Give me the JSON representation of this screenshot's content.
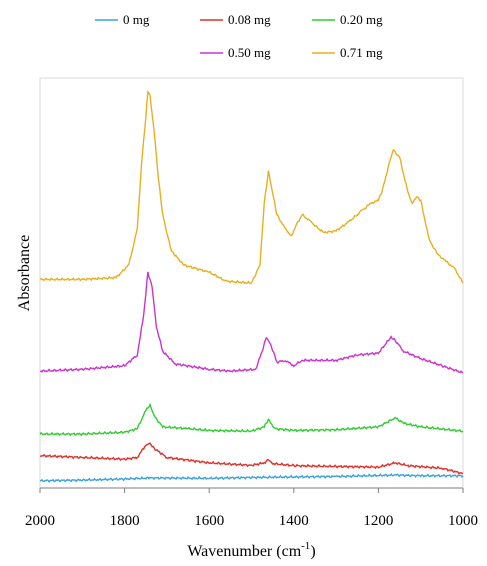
{
  "chart_data": {
    "type": "line",
    "title": "",
    "xlabel": "Wavenumber",
    "xlabel_unit": "cm",
    "xlabel_unit_exp": "-1",
    "xlabel_close": ")",
    "xlabel_open": " (",
    "ylabel": "Absorbance",
    "xlim": [
      2000,
      1000
    ],
    "x_reversed": true,
    "x_ticks": [
      2000,
      1800,
      1600,
      1400,
      1200,
      1000
    ],
    "y_ticks_shown": false,
    "grid": false,
    "legend_position": "top",
    "series": [
      {
        "name": "0 mg",
        "color": "#3BA3D9",
        "points": [
          [
            2000,
            0.02
          ],
          [
            1900,
            0.022
          ],
          [
            1800,
            0.025
          ],
          [
            1740,
            0.028
          ],
          [
            1600,
            0.027
          ],
          [
            1460,
            0.03
          ],
          [
            1300,
            0.032
          ],
          [
            1160,
            0.036
          ],
          [
            1100,
            0.034
          ],
          [
            1000,
            0.034
          ]
        ]
      },
      {
        "name": "0.08 mg",
        "color": "#E0312B",
        "points": [
          [
            2000,
            0.09
          ],
          [
            1900,
            0.085
          ],
          [
            1800,
            0.08
          ],
          [
            1770,
            0.085
          ],
          [
            1750,
            0.12
          ],
          [
            1740,
            0.125
          ],
          [
            1730,
            0.11
          ],
          [
            1700,
            0.085
          ],
          [
            1600,
            0.07
          ],
          [
            1500,
            0.063
          ],
          [
            1470,
            0.07
          ],
          [
            1460,
            0.08
          ],
          [
            1450,
            0.068
          ],
          [
            1400,
            0.062
          ],
          [
            1300,
            0.06
          ],
          [
            1200,
            0.058
          ],
          [
            1160,
            0.07
          ],
          [
            1130,
            0.062
          ],
          [
            1050,
            0.055
          ],
          [
            1000,
            0.04
          ]
        ]
      },
      {
        "name": "0.20 mg",
        "color": "#33CC33",
        "points": [
          [
            2000,
            0.15
          ],
          [
            1900,
            0.15
          ],
          [
            1800,
            0.155
          ],
          [
            1770,
            0.165
          ],
          [
            1750,
            0.215
          ],
          [
            1740,
            0.23
          ],
          [
            1730,
            0.2
          ],
          [
            1710,
            0.17
          ],
          [
            1650,
            0.165
          ],
          [
            1600,
            0.16
          ],
          [
            1500,
            0.158
          ],
          [
            1470,
            0.17
          ],
          [
            1460,
            0.19
          ],
          [
            1445,
            0.165
          ],
          [
            1400,
            0.16
          ],
          [
            1300,
            0.162
          ],
          [
            1200,
            0.17
          ],
          [
            1160,
            0.195
          ],
          [
            1140,
            0.18
          ],
          [
            1100,
            0.17
          ],
          [
            1000,
            0.158
          ]
        ]
      },
      {
        "name": "0.50 mg",
        "color": "#CC33CC",
        "points": [
          [
            2000,
            0.325
          ],
          [
            1900,
            0.33
          ],
          [
            1800,
            0.34
          ],
          [
            1770,
            0.37
          ],
          [
            1755,
            0.48
          ],
          [
            1745,
            0.6
          ],
          [
            1735,
            0.56
          ],
          [
            1725,
            0.45
          ],
          [
            1710,
            0.38
          ],
          [
            1680,
            0.345
          ],
          [
            1600,
            0.33
          ],
          [
            1550,
            0.325
          ],
          [
            1490,
            0.33
          ],
          [
            1475,
            0.38
          ],
          [
            1465,
            0.42
          ],
          [
            1455,
            0.4
          ],
          [
            1440,
            0.35
          ],
          [
            1420,
            0.355
          ],
          [
            1400,
            0.34
          ],
          [
            1380,
            0.355
          ],
          [
            1300,
            0.355
          ],
          [
            1250,
            0.37
          ],
          [
            1200,
            0.375
          ],
          [
            1170,
            0.42
          ],
          [
            1160,
            0.41
          ],
          [
            1140,
            0.38
          ],
          [
            1100,
            0.36
          ],
          [
            1050,
            0.34
          ],
          [
            1000,
            0.32
          ]
        ]
      },
      {
        "name": "0.71 mg",
        "color": "#E8B020",
        "points": [
          [
            2000,
            0.58
          ],
          [
            1900,
            0.58
          ],
          [
            1820,
            0.585
          ],
          [
            1790,
            0.62
          ],
          [
            1770,
            0.72
          ],
          [
            1760,
            0.9
          ],
          [
            1750,
            1.03
          ],
          [
            1745,
            1.1
          ],
          [
            1740,
            1.09
          ],
          [
            1730,
            0.99
          ],
          [
            1720,
            0.86
          ],
          [
            1710,
            0.76
          ],
          [
            1690,
            0.66
          ],
          [
            1660,
            0.62
          ],
          [
            1600,
            0.6
          ],
          [
            1560,
            0.575
          ],
          [
            1500,
            0.57
          ],
          [
            1480,
            0.62
          ],
          [
            1470,
            0.79
          ],
          [
            1460,
            0.88
          ],
          [
            1450,
            0.82
          ],
          [
            1440,
            0.76
          ],
          [
            1420,
            0.72
          ],
          [
            1405,
            0.7
          ],
          [
            1395,
            0.73
          ],
          [
            1380,
            0.76
          ],
          [
            1360,
            0.74
          ],
          [
            1330,
            0.71
          ],
          [
            1300,
            0.715
          ],
          [
            1270,
            0.74
          ],
          [
            1240,
            0.77
          ],
          [
            1220,
            0.79
          ],
          [
            1200,
            0.8
          ],
          [
            1190,
            0.83
          ],
          [
            1175,
            0.9
          ],
          [
            1165,
            0.94
          ],
          [
            1150,
            0.92
          ],
          [
            1130,
            0.82
          ],
          [
            1120,
            0.79
          ],
          [
            1110,
            0.81
          ],
          [
            1100,
            0.8
          ],
          [
            1080,
            0.69
          ],
          [
            1060,
            0.65
          ],
          [
            1040,
            0.63
          ],
          [
            1020,
            0.61
          ],
          [
            1000,
            0.57
          ]
        ]
      }
    ]
  }
}
